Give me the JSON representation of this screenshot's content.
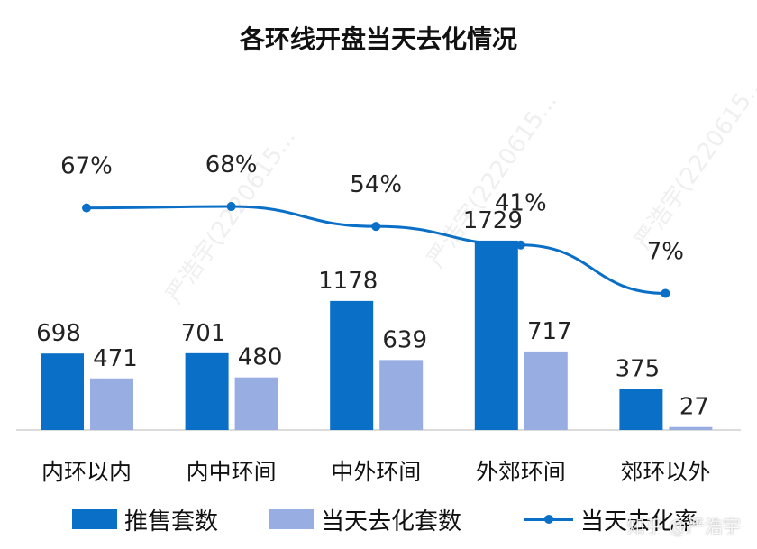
{
  "title": "各环线开盘当天去化情况",
  "colors": {
    "sold_bar": "#0a6fc7",
    "absorbed_bar": "#98aee2",
    "rate_line": "#0a6fc7",
    "axis": "#d0d0d0",
    "label": "#222222"
  },
  "watermark_text": "严浩宇(2220615...",
  "watermark_corner": "知乎 @严浩宇",
  "legend": [
    {
      "label": "推售套数",
      "kind": "bar",
      "color": "#0a6fc7"
    },
    {
      "label": "当天去化套数",
      "kind": "bar",
      "color": "#98aee2"
    },
    {
      "label": "当天去化率",
      "kind": "line",
      "color": "#0a6fc7"
    }
  ],
  "chart_data": {
    "type": "bar",
    "title": "各环线开盘当天去化情况",
    "categories": [
      "内环以内",
      "内中环间",
      "中外环间",
      "外郊环间",
      "郊环以外"
    ],
    "series": [
      {
        "name": "推售套数",
        "type": "bar",
        "values": [
          698,
          701,
          1178,
          1729,
          375
        ]
      },
      {
        "name": "当天去化套数",
        "type": "bar",
        "values": [
          471,
          480,
          639,
          717,
          27
        ]
      },
      {
        "name": "当天去化率",
        "type": "line",
        "values": [
          67,
          68,
          54,
          41,
          7
        ],
        "labels": [
          "67%",
          "68%",
          "54%",
          "41%",
          "7%"
        ]
      }
    ],
    "legend_position": "bottom",
    "grid": false
  }
}
